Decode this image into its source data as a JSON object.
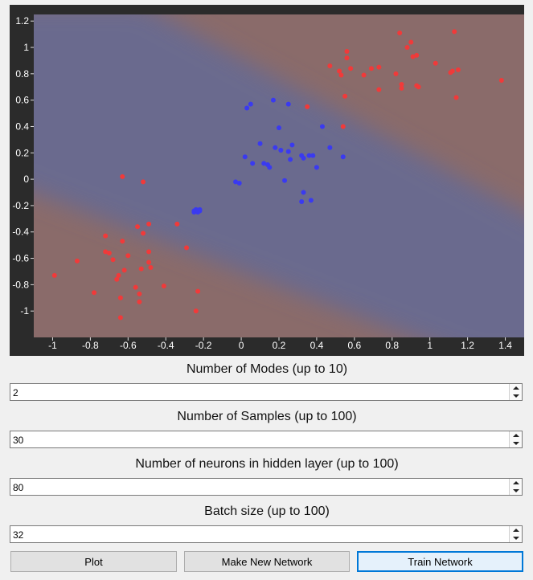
{
  "chart_data": {
    "type": "scatter",
    "xlim": [
      -1.1,
      1.5
    ],
    "ylim": [
      -1.2,
      1.25
    ],
    "xticks": [
      "-1",
      "-0.8",
      "-0.6",
      "-0.4",
      "-0.2",
      "0",
      "0.2",
      "0.4",
      "0.6",
      "0.8",
      "1",
      "1.2",
      "1.4"
    ],
    "yticks": [
      "1.2",
      "1",
      "0.8",
      "0.6",
      "0.4",
      "0.2",
      "0",
      "-0.2",
      "-0.4",
      "-0.6",
      "-0.8",
      "-1"
    ],
    "colors": {
      "background": "#2b2b2b",
      "region_red": "#8a6b6a",
      "region_blue": "#6a6b8e",
      "red": "#f03a3a",
      "blue": "#3a3af0"
    },
    "series": [
      {
        "color": "red",
        "points": [
          [
            0.47,
            0.86
          ],
          [
            0.52,
            0.82
          ],
          [
            0.53,
            0.79
          ],
          [
            0.56,
            0.97
          ],
          [
            0.56,
            0.92
          ],
          [
            0.58,
            0.84
          ],
          [
            0.65,
            0.79
          ],
          [
            0.69,
            0.84
          ],
          [
            0.73,
            0.85
          ],
          [
            0.82,
            0.8
          ],
          [
            0.84,
            1.11
          ],
          [
            0.85,
            0.69
          ],
          [
            0.85,
            0.72
          ],
          [
            0.88,
            1.0
          ],
          [
            0.9,
            1.04
          ],
          [
            0.91,
            0.93
          ],
          [
            0.93,
            0.94
          ],
          [
            0.93,
            0.71
          ],
          [
            0.94,
            0.7
          ],
          [
            1.03,
            0.88
          ],
          [
            1.11,
            0.81
          ],
          [
            1.12,
            0.82
          ],
          [
            1.13,
            1.12
          ],
          [
            1.14,
            0.62
          ],
          [
            1.15,
            0.83
          ],
          [
            1.38,
            0.75
          ],
          [
            0.55,
            0.63
          ],
          [
            0.73,
            0.68
          ],
          [
            0.35,
            0.55
          ],
          [
            0.54,
            0.4
          ],
          [
            -0.63,
            0.02
          ],
          [
            -0.52,
            -0.02
          ],
          [
            -0.99,
            -0.73
          ],
          [
            -0.87,
            -0.62
          ],
          [
            -0.78,
            -0.86
          ],
          [
            -0.72,
            -0.43
          ],
          [
            -0.72,
            -0.55
          ],
          [
            -0.7,
            -0.56
          ],
          [
            -0.68,
            -0.61
          ],
          [
            -0.66,
            -0.76
          ],
          [
            -0.65,
            -0.73
          ],
          [
            -0.64,
            -0.9
          ],
          [
            -0.64,
            -1.05
          ],
          [
            -0.63,
            -0.47
          ],
          [
            -0.62,
            -0.69
          ],
          [
            -0.6,
            -0.58
          ],
          [
            -0.56,
            -0.82
          ],
          [
            -0.55,
            -0.36
          ],
          [
            -0.54,
            -0.87
          ],
          [
            -0.54,
            -0.93
          ],
          [
            -0.53,
            -0.68
          ],
          [
            -0.52,
            -0.41
          ],
          [
            -0.49,
            -0.34
          ],
          [
            -0.49,
            -0.55
          ],
          [
            -0.49,
            -0.63
          ],
          [
            -0.48,
            -0.67
          ],
          [
            -0.41,
            -0.81
          ],
          [
            -0.34,
            -0.34
          ],
          [
            -0.29,
            -0.52
          ],
          [
            -0.24,
            -1.0
          ],
          [
            -0.23,
            -0.85
          ]
        ]
      },
      {
        "color": "blue",
        "points": [
          [
            0.03,
            0.54
          ],
          [
            0.05,
            0.57
          ],
          [
            0.17,
            0.6
          ],
          [
            0.25,
            0.57
          ],
          [
            0.43,
            0.4
          ],
          [
            0.2,
            0.39
          ],
          [
            0.1,
            0.27
          ],
          [
            0.18,
            0.24
          ],
          [
            0.21,
            0.22
          ],
          [
            0.25,
            0.21
          ],
          [
            0.27,
            0.26
          ],
          [
            0.32,
            0.18
          ],
          [
            0.33,
            0.16
          ],
          [
            0.36,
            0.18
          ],
          [
            0.38,
            0.18
          ],
          [
            0.47,
            0.24
          ],
          [
            0.54,
            0.17
          ],
          [
            0.02,
            0.17
          ],
          [
            0.06,
            0.12
          ],
          [
            0.12,
            0.12
          ],
          [
            0.14,
            0.11
          ],
          [
            0.15,
            0.09
          ],
          [
            0.26,
            0.15
          ],
          [
            0.4,
            0.09
          ],
          [
            -0.03,
            -0.02
          ],
          [
            -0.01,
            -0.03
          ],
          [
            0.23,
            -0.01
          ],
          [
            0.33,
            -0.1
          ],
          [
            0.32,
            -0.17
          ],
          [
            0.37,
            -0.16
          ],
          [
            -0.25,
            -0.25
          ],
          [
            -0.24,
            -0.24
          ],
          [
            -0.23,
            -0.24
          ],
          [
            -0.22,
            -0.24
          ],
          [
            -0.24,
            -0.23
          ],
          [
            -0.23,
            -0.25
          ],
          [
            -0.22,
            -0.23
          ],
          [
            -0.25,
            -0.24
          ]
        ]
      }
    ]
  },
  "fields": [
    {
      "label": "Number of Modes (up to 10)",
      "value": "2"
    },
    {
      "label": "Number of Samples (up to 100)",
      "value": "30"
    },
    {
      "label": "Number of neurons in hidden layer (up to 100)",
      "value": "80"
    },
    {
      "label": "Batch size (up to 100)",
      "value": "32"
    }
  ],
  "buttons": {
    "plot": "Plot",
    "new_network": "Make New Network",
    "train": "Train Network"
  }
}
